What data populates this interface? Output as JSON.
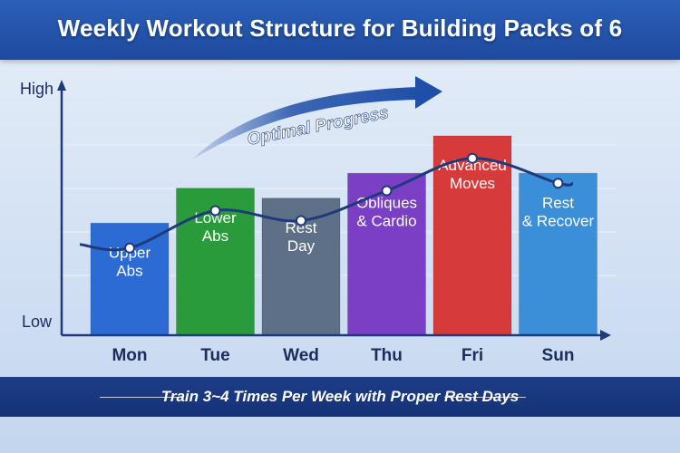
{
  "chart_data": {
    "type": "bar",
    "title": "Weekly Workout Structure for Building Packs of 6",
    "categories": [
      "Mon",
      "Tue",
      "Wed",
      "Thu",
      "Fri",
      "Sun"
    ],
    "bar_labels": [
      "Upper Abs",
      "Lower Abs",
      "Rest Day",
      "Obliques & Cardio",
      "Advanced Moves",
      "Rest & Recover"
    ],
    "values": [
      4.5,
      5.9,
      5.5,
      6.5,
      8.0,
      6.5
    ],
    "line_values": [
      3.5,
      5.0,
      4.6,
      5.8,
      7.1,
      6.1
    ],
    "colors": [
      "#2d6bd4",
      "#2a9b3a",
      "#5e6f88",
      "#7a3fc4",
      "#d63a3a",
      "#3b8fd9"
    ],
    "ylim": [
      0,
      10
    ],
    "y_axis_top_label": "High",
    "y_axis_bottom_label": "Low",
    "annotation": "Optimal Progress",
    "line_color": "#1f3a7a",
    "arrow_color": "#1f4fa8"
  },
  "footer": {
    "text": "Train 3~4 Times Per Week with Proper Rest Days"
  }
}
